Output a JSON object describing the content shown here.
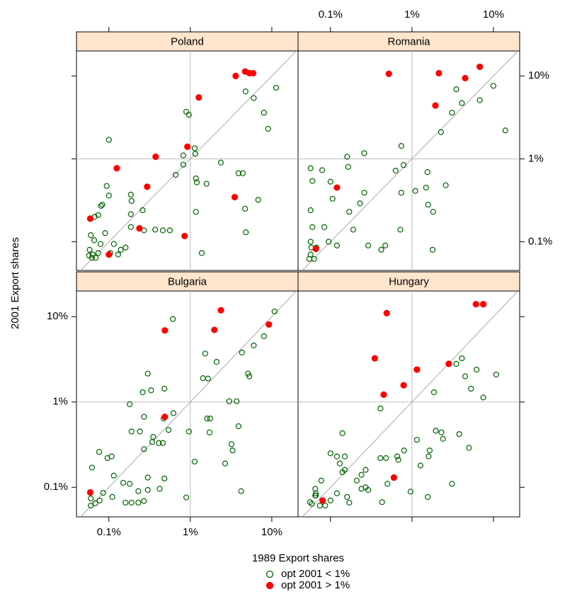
{
  "chart_data": {
    "type": "scatter",
    "xlabel": "1989 Export shares",
    "ylabel": "2001 Export shares",
    "log_x": true,
    "log_y": true,
    "xlim": [
      0.04,
      21
    ],
    "ylim": [
      0.045,
      20
    ],
    "xticks": [
      {
        "value": 0.1,
        "label": "0.1%"
      },
      {
        "value": 1,
        "label": "1%"
      },
      {
        "value": 10,
        "label": "10%"
      }
    ],
    "yticks": [
      {
        "value": 0.1,
        "label": "0.1%"
      },
      {
        "value": 1,
        "label": "1%"
      },
      {
        "value": 10,
        "label": "10%"
      }
    ],
    "refline": 1,
    "series": [
      {
        "name": "opt 2001 < 1%",
        "color": "#006400",
        "filled": false
      },
      {
        "name": "opt 2001 > 1%",
        "color": "#ff0000",
        "filled": true
      }
    ],
    "panels": [
      {
        "title": "Poland",
        "series": [
          {
            "x": [
              11.3,
              4.76,
              6.0,
              8.0,
              9.0,
              0.89,
              0.96,
              1.13,
              1.15,
              0.82,
              0.82,
              0.66,
              2.37,
              3.9,
              4.4,
              1.17,
              1.2,
              1.58,
              6.8,
              4.7,
              1.17,
              4.8,
              1.38,
              0.1,
              0.094,
              0.1,
              0.083,
              0.08,
              0.074,
              0.067,
              0.186,
              0.19,
              0.186,
              0.26,
              0.186,
              0.27,
              0.37,
              0.46,
              0.56,
              0.16,
              0.14,
              0.06,
              0.09,
              0.115,
              0.058,
              0.057,
              0.063,
              0.074,
              0.104,
              0.13,
              0.079,
              0.066,
              0.062,
              0.069
            ],
            "y": [
              7.2,
              6.5,
              5.4,
              3.6,
              2.3,
              3.7,
              3.4,
              1.34,
              1.15,
              1.1,
              0.85,
              0.64,
              0.9,
              0.67,
              0.67,
              0.58,
              0.52,
              0.5,
              0.32,
              0.25,
              0.23,
              0.13,
              0.073,
              1.7,
              0.47,
              0.36,
              0.28,
              0.27,
              0.21,
              0.2,
              0.37,
              0.31,
              0.215,
              0.24,
              0.15,
              0.137,
              0.14,
              0.137,
              0.137,
              0.085,
              0.08,
              0.12,
              0.127,
              0.094,
              0.08,
              0.068,
              0.07,
              0.073,
              0.073,
              0.07,
              0.094,
              0.104,
              0.064,
              0.064
            ]
          },
          {
            "x": [
              3.6,
              4.7,
              5.3,
              5.9,
              1.27,
              0.92,
              0.375,
              0.125,
              0.295,
              0.059,
              0.1,
              0.237,
              0.85,
              3.5
            ],
            "y": [
              10,
              11.3,
              10.8,
              10.8,
              5.5,
              1.4,
              1.06,
              0.77,
              0.46,
              0.19,
              0.07,
              0.145,
              0.117,
              0.345
            ]
          }
        ]
      },
      {
        "title": "Romania",
        "series": [
          {
            "x": [
              10,
              3.5,
              6.8,
              4.1,
              3.1,
              14,
              2.27,
              0.74,
              0.26,
              0.16,
              0.79,
              0.63,
              1.55,
              0.057,
              0.079,
              0.165,
              0.06,
              0.1,
              1.49,
              2.6,
              1.1,
              0.26,
              0.106,
              0.74,
              1.58,
              1.82,
              0.23,
              0.17,
              0.057,
              0.084,
              0.06,
              0.72,
              0.19,
              0.29,
              0.47,
              0.42,
              1.79,
              0.12,
              0.095,
              0.057,
              0.058,
              0.067,
              0.057,
              0.063,
              0.055
            ],
            "y": [
              7.6,
              6.9,
              5.1,
              4.7,
              3.6,
              2.2,
              2.1,
              1.43,
              1.17,
              1.06,
              0.84,
              0.72,
              0.69,
              0.77,
              0.73,
              0.8,
              0.54,
              0.53,
              0.45,
              0.48,
              0.41,
              0.39,
              0.33,
              0.39,
              0.28,
              0.23,
              0.29,
              0.23,
              0.24,
              0.15,
              0.15,
              0.14,
              0.14,
              0.09,
              0.09,
              0.08,
              0.08,
              0.09,
              0.1,
              0.1,
              0.085,
              0.085,
              0.07,
              0.062,
              0.062
            ]
          },
          {
            "x": [
              0.52,
              2.14,
              4.5,
              6.8,
              1.94,
              0.12,
              0.066
            ],
            "y": [
              10.6,
              10.8,
              9.4,
              12.9,
              4.4,
              0.45,
              0.082
            ]
          }
        ]
      },
      {
        "title": "Bulgaria",
        "series": [
          {
            "x": [
              10.8,
              8.0,
              6.0,
              4.3,
              0.61,
              1.52,
              2.1,
              1.43,
              1.65,
              5.1,
              5.3,
              0.3,
              0.26,
              0.33,
              0.48,
              0.18,
              3.0,
              3.7,
              0.62,
              0.47,
              1.6,
              1.75,
              0.27,
              0.19,
              0.24,
              0.96,
              1.72,
              3.9,
              0.54,
              0.35,
              0.34,
              0.41,
              0.46,
              0.27,
              3.2,
              3.3,
              1.13,
              2.67,
              0.076,
              0.096,
              0.108,
              0.062,
              0.115,
              0.15,
              0.18,
              0.3,
              0.48,
              0.23,
              0.3,
              0.42,
              0.89,
              4.2,
              0.085,
              0.11,
              0.16,
              0.19,
              0.23,
              0.27,
              0.06,
              0.068,
              0.06,
              0.077
            ],
            "y": [
              11.5,
              5.9,
              4.6,
              3.8,
              9.4,
              3.7,
              2.95,
              1.9,
              1.88,
              2.15,
              2.0,
              2.15,
              1.3,
              1.37,
              1.43,
              0.94,
              1.02,
              1.02,
              0.74,
              0.64,
              0.64,
              0.64,
              0.67,
              0.45,
              0.45,
              0.45,
              0.44,
              0.52,
              0.47,
              0.39,
              0.34,
              0.33,
              0.33,
              0.28,
              0.32,
              0.27,
              0.2,
              0.19,
              0.26,
              0.22,
              0.23,
              0.17,
              0.137,
              0.113,
              0.11,
              0.13,
              0.127,
              0.09,
              0.093,
              0.096,
              0.076,
              0.09,
              0.086,
              0.077,
              0.066,
              0.066,
              0.066,
              0.069,
              0.074,
              0.065,
              0.061,
              0.07
            ]
          },
          {
            "x": [
              0.486,
              1.97,
              2.37,
              9.2,
              0.486,
              0.059
            ],
            "y": [
              6.9,
              7.0,
              11.9,
              8.1,
              0.67,
              0.087
            ]
          }
        ]
      },
      {
        "title": "Hungary",
        "series": [
          {
            "x": [
              10.8,
              6.2,
              4.1,
              3.5,
              5.3,
              7.5,
              4.5,
              1.86,
              0.41,
              0.14,
              1.96,
              3.8,
              5.0,
              2.3,
              1.15,
              2.4,
              1.65,
              1.6,
              1.27,
              0.8,
              0.66,
              0.68,
              0.41,
              0.48,
              0.1,
              0.12,
              0.15,
              0.13,
              0.15,
              0.14,
              0.27,
              0.24,
              0.21,
              0.24,
              0.29,
              0.27,
              0.5,
              0.96,
              3.1,
              1.56,
              0.43,
              0.16,
              0.17,
              0.1,
              0.12,
              0.077,
              0.065,
              0.066,
              0.066,
              0.056,
              0.059,
              0.074,
              0.086,
              0.065
            ],
            "y": [
              2.1,
              2.4,
              3.25,
              2.8,
              1.43,
              1.13,
              2.0,
              1.3,
              0.84,
              0.43,
              0.46,
              0.42,
              0.29,
              0.44,
              0.36,
              0.37,
              0.27,
              0.23,
              0.18,
              0.27,
              0.23,
              0.21,
              0.22,
              0.22,
              0.25,
              0.23,
              0.23,
              0.19,
              0.16,
              0.15,
              0.16,
              0.14,
              0.12,
              0.096,
              0.093,
              0.1,
              0.11,
              0.089,
              0.11,
              0.077,
              0.067,
              0.077,
              0.066,
              0.07,
              0.085,
              0.12,
              0.096,
              0.085,
              0.08,
              0.067,
              0.064,
              0.061,
              0.061,
              0.08
            ]
          },
          {
            "x": [
              0.49,
              6.1,
              7.5,
              0.35,
              1.15,
              2.83,
              0.45,
              0.79,
              0.6,
              0.08
            ],
            "y": [
              11.0,
              14.0,
              14.0,
              3.25,
              2.4,
              2.8,
              1.22,
              1.57,
              0.13,
              0.07
            ]
          }
        ]
      }
    ]
  }
}
